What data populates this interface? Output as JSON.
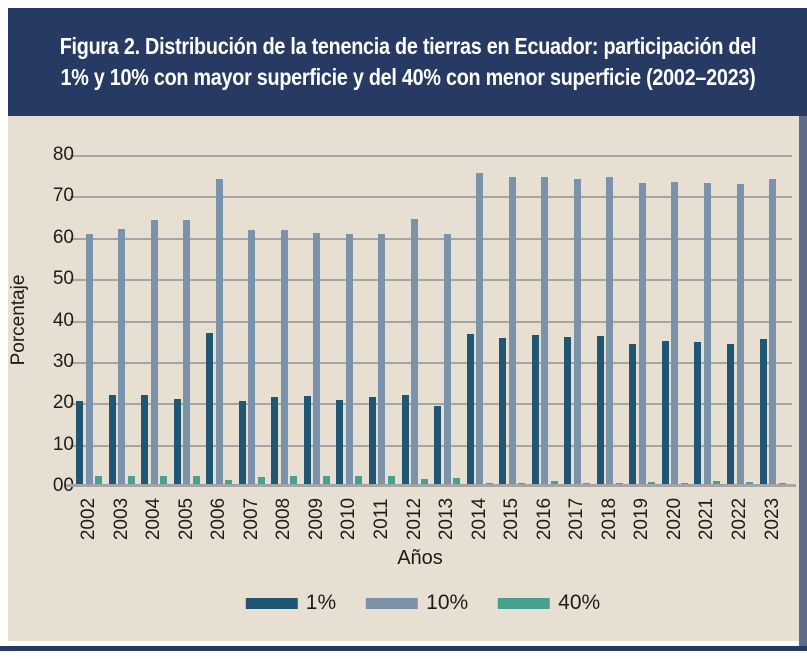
{
  "figure": {
    "title_line1": "Figura 2. Distribución de la tenencia de tierras en Ecuador: participación del",
    "title_line2": "1% y 10% con mayor superficie y del 40% con menor superficie (2002–2023)"
  },
  "chart_data": {
    "type": "bar",
    "title": "Figura 2. Distribución de la tenencia de tierras en Ecuador: participación del 1% y 10% con mayor superficie y del 40% con menor superficie (2002–2023)",
    "xlabel": "Años",
    "ylabel": "Porcentaje",
    "ylim": [
      0,
      80
    ],
    "ytick_step": 10,
    "ytick_labels": [
      "80",
      "70",
      "60",
      "50",
      "40",
      "30",
      "20",
      "10",
      "00"
    ],
    "grid": true,
    "legend_position": "bottom",
    "categories": [
      "2002",
      "2003",
      "2004",
      "2005",
      "2006",
      "2007",
      "2008",
      "2009",
      "2010",
      "2011",
      "2012",
      "2013",
      "2014",
      "2015",
      "2016",
      "2017",
      "2018",
      "2019",
      "2020",
      "2021",
      "2022",
      "2023"
    ],
    "series": [
      {
        "name": "1%",
        "color": "#1f5673",
        "values": [
          20.5,
          21.9,
          21.9,
          21.1,
          36.9,
          20.6,
          21.5,
          21.7,
          20.9,
          21.5,
          22.0,
          19.3,
          36.7,
          35.7,
          36.5,
          36.0,
          36.2,
          34.3,
          35.0,
          34.9,
          34.3,
          35.6
        ]
      },
      {
        "name": "10%",
        "color": "#7b92ab",
        "values": [
          61.0,
          62.2,
          64.4,
          64.4,
          74.2,
          61.8,
          61.8,
          61.2,
          60.8,
          61.0,
          64.6,
          61.0,
          75.7,
          74.6,
          74.6,
          74.3,
          74.6,
          73.3,
          73.5,
          73.2,
          72.9,
          74.1
        ]
      },
      {
        "name": "40%",
        "color": "#48a18f",
        "values": [
          2.3,
          2.3,
          2.4,
          2.4,
          1.5,
          2.2,
          2.3,
          2.3,
          2.4,
          2.4,
          1.8,
          2.0,
          0.8,
          0.8,
          1.1,
          0.8,
          0.8,
          1.0,
          0.8,
          1.2,
          1.0,
          0.8
        ]
      }
    ]
  },
  "colors": {
    "header_bg": "#263a63",
    "title_text": "#ffffff",
    "panel_bg": "#e7e0d2",
    "gridline": "#a5a5a5",
    "axis_line": "#9b9b9b",
    "text": "#1d1d1b",
    "footer_bar": "#263a63",
    "page_edge": "#5d6c8b",
    "series_1pct": "#1f5673",
    "series_10pct": "#7b92ab",
    "series_40pct": "#48a18f"
  }
}
